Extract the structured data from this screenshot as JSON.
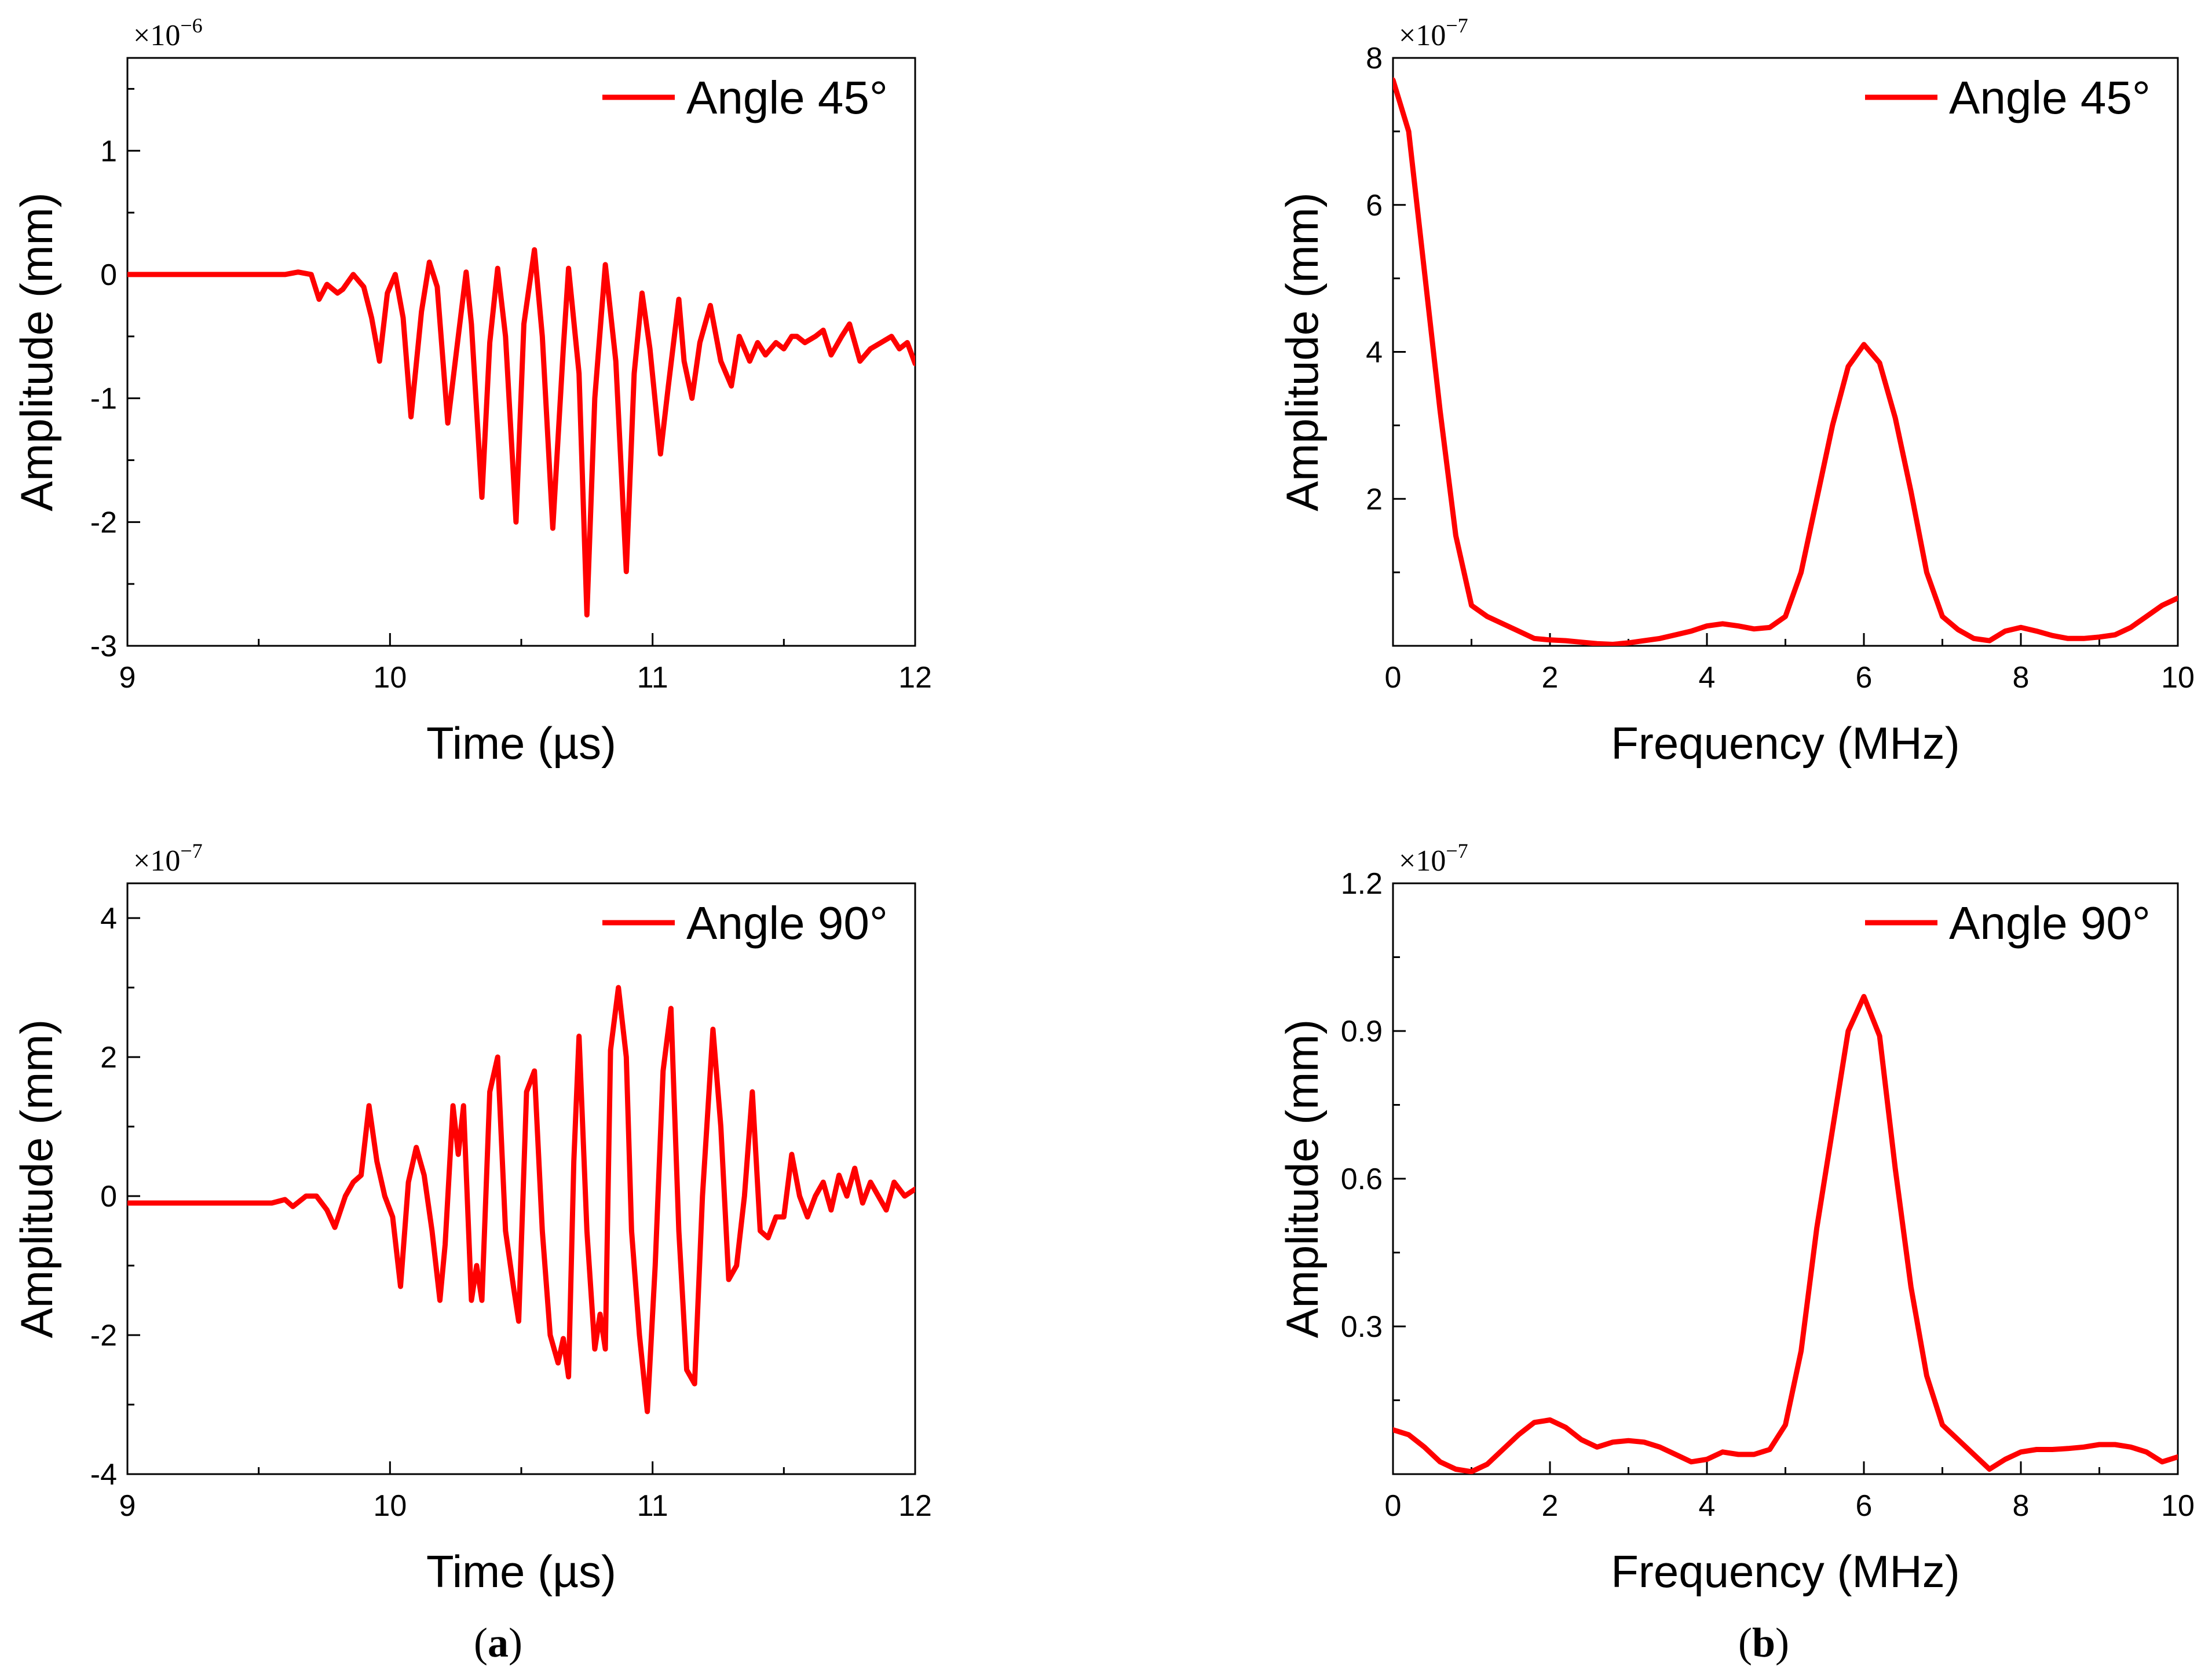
{
  "panel_labels": [
    {
      "open": "(",
      "letter": "a",
      "close": ")"
    },
    {
      "open": "(",
      "letter": "b",
      "close": ")"
    }
  ],
  "colors": {
    "series": "#ff0000",
    "axis": "#000000"
  },
  "chart_data": [
    {
      "type": "line",
      "title": "",
      "xlabel": "Time (µs)",
      "ylabel": "Amplitude (mm)",
      "multiplier": {
        "base": "×10",
        "exp": "−6"
      },
      "xlim": [
        9,
        12
      ],
      "ylim": [
        -3,
        1.75
      ],
      "xticks": [
        9,
        10,
        11,
        12
      ],
      "yticks": [
        -3,
        -2,
        -1,
        0,
        1
      ],
      "ytick_labels": [
        "-3",
        "-2",
        "-1",
        "0",
        "1"
      ],
      "legend": "Angle 45°",
      "legend_loc": "top-right",
      "series": [
        {
          "name": "Angle 45°",
          "color": "#ff0000",
          "x": [
            9.0,
            9.6,
            9.65,
            9.7,
            9.73,
            9.76,
            9.8,
            9.82,
            9.86,
            9.9,
            9.93,
            9.96,
            9.99,
            10.02,
            10.05,
            10.08,
            10.12,
            10.15,
            10.18,
            10.22,
            10.26,
            10.29,
            10.31,
            10.35,
            10.38,
            10.41,
            10.44,
            10.48,
            10.51,
            10.55,
            10.58,
            10.62,
            10.66,
            10.68,
            10.72,
            10.75,
            10.78,
            10.82,
            10.86,
            10.9,
            10.93,
            10.96,
            10.99,
            11.03,
            11.06,
            11.1,
            11.12,
            11.15,
            11.18,
            11.22,
            11.26,
            11.3,
            11.33,
            11.37,
            11.4,
            11.43,
            11.47,
            11.5,
            11.53,
            11.55,
            11.58,
            11.62,
            11.65,
            11.68,
            11.72,
            11.75,
            11.79,
            11.83,
            11.87,
            11.91,
            11.94,
            11.97,
            12.0
          ],
          "y": [
            0.0,
            0.0,
            0.02,
            0.0,
            -0.2,
            -0.08,
            -0.15,
            -0.12,
            0.0,
            -0.1,
            -0.35,
            -0.7,
            -0.15,
            0.0,
            -0.35,
            -1.15,
            -0.3,
            0.1,
            -0.1,
            -1.2,
            -0.5,
            0.02,
            -0.4,
            -1.8,
            -0.55,
            0.05,
            -0.5,
            -2.0,
            -0.4,
            0.2,
            -0.5,
            -2.05,
            -0.6,
            0.05,
            -0.8,
            -2.75,
            -1.0,
            0.08,
            -0.7,
            -2.4,
            -0.8,
            -0.15,
            -0.6,
            -1.45,
            -0.9,
            -0.2,
            -0.7,
            -1.0,
            -0.55,
            -0.25,
            -0.7,
            -0.9,
            -0.5,
            -0.7,
            -0.55,
            -0.65,
            -0.55,
            -0.6,
            -0.5,
            -0.5,
            -0.55,
            -0.5,
            -0.45,
            -0.65,
            -0.5,
            -0.4,
            -0.7,
            -0.6,
            -0.55,
            -0.5,
            -0.6,
            -0.55,
            -0.72
          ]
        }
      ]
    },
    {
      "type": "line",
      "title": "",
      "xlabel": "Frequency (MHz)",
      "ylabel": "Amplitude (mm)",
      "multiplier": {
        "base": "×10",
        "exp": "−7"
      },
      "xlim": [
        0,
        10
      ],
      "ylim": [
        0,
        8
      ],
      "xticks": [
        0,
        2,
        4,
        6,
        8,
        10
      ],
      "yticks": [
        2,
        4,
        6,
        8
      ],
      "ytick_labels": [
        "2",
        "4",
        "6",
        "8"
      ],
      "legend": "Angle 45°",
      "legend_loc": "top-right",
      "series": [
        {
          "name": "Angle 45°",
          "color": "#ff0000",
          "x": [
            0,
            0.2,
            0.4,
            0.6,
            0.8,
            1.0,
            1.2,
            1.4,
            1.6,
            1.8,
            2.0,
            2.2,
            2.4,
            2.6,
            2.8,
            3.0,
            3.2,
            3.4,
            3.6,
            3.8,
            4.0,
            4.2,
            4.4,
            4.6,
            4.8,
            5.0,
            5.2,
            5.4,
            5.6,
            5.8,
            6.0,
            6.2,
            6.4,
            6.6,
            6.8,
            7.0,
            7.2,
            7.4,
            7.6,
            7.8,
            8.0,
            8.2,
            8.4,
            8.6,
            8.8,
            9.0,
            9.2,
            9.4,
            9.6,
            9.8,
            10.0
          ],
          "y": [
            7.7,
            7.0,
            5.1,
            3.2,
            1.5,
            0.55,
            0.4,
            0.3,
            0.2,
            0.1,
            0.08,
            0.07,
            0.05,
            0.03,
            0.02,
            0.04,
            0.07,
            0.1,
            0.15,
            0.2,
            0.27,
            0.3,
            0.27,
            0.23,
            0.25,
            0.4,
            1.0,
            2.0,
            3.0,
            3.8,
            4.1,
            3.85,
            3.1,
            2.1,
            1.0,
            0.4,
            0.22,
            0.1,
            0.07,
            0.2,
            0.25,
            0.2,
            0.14,
            0.1,
            0.1,
            0.12,
            0.15,
            0.25,
            0.4,
            0.55,
            0.65
          ]
        }
      ]
    },
    {
      "type": "line",
      "title": "",
      "xlabel": "Time (µs)",
      "ylabel": "Amplitude (mm)",
      "multiplier": {
        "base": "×10",
        "exp": "−7"
      },
      "xlim": [
        9,
        12
      ],
      "ylim": [
        -4,
        4.5
      ],
      "xticks": [
        9,
        10,
        11,
        12
      ],
      "yticks": [
        -4,
        -2,
        0,
        2,
        4
      ],
      "ytick_labels": [
        "-4",
        "-2",
        "0",
        "2",
        "4"
      ],
      "legend": "Angle 90°",
      "legend_loc": "top-right",
      "series": [
        {
          "name": "Angle 90°",
          "color": "#ff0000",
          "x": [
            9.0,
            9.55,
            9.6,
            9.63,
            9.68,
            9.72,
            9.76,
            9.79,
            9.83,
            9.86,
            9.89,
            9.92,
            9.95,
            9.98,
            10.01,
            10.04,
            10.07,
            10.1,
            10.13,
            10.16,
            10.19,
            10.21,
            10.24,
            10.26,
            10.28,
            10.31,
            10.33,
            10.35,
            10.38,
            10.41,
            10.44,
            10.47,
            10.49,
            10.52,
            10.55,
            10.58,
            10.61,
            10.64,
            10.66,
            10.68,
            10.7,
            10.72,
            10.75,
            10.78,
            10.8,
            10.82,
            10.84,
            10.87,
            10.9,
            10.92,
            10.95,
            10.98,
            11.01,
            11.04,
            11.07,
            11.1,
            11.13,
            11.16,
            11.19,
            11.23,
            11.26,
            11.29,
            11.32,
            11.35,
            11.38,
            11.41,
            11.44,
            11.47,
            11.5,
            11.53,
            11.56,
            11.59,
            11.62,
            11.65,
            11.68,
            11.71,
            11.74,
            11.77,
            11.8,
            11.83,
            11.86,
            11.89,
            11.92,
            11.96,
            12.0
          ],
          "y": [
            -0.1,
            -0.1,
            -0.05,
            -0.15,
            0.0,
            0.0,
            -0.2,
            -0.45,
            0.0,
            0.2,
            0.3,
            1.3,
            0.5,
            0.0,
            -0.3,
            -1.3,
            0.2,
            0.7,
            0.3,
            -0.5,
            -1.5,
            -0.7,
            1.3,
            0.6,
            1.3,
            -1.5,
            -1.0,
            -1.5,
            1.5,
            2.0,
            -0.5,
            -1.3,
            -1.8,
            1.5,
            1.8,
            -0.5,
            -2.0,
            -2.4,
            -2.05,
            -2.6,
            0.5,
            2.3,
            -0.5,
            -2.2,
            -1.7,
            -2.2,
            2.1,
            3.0,
            2.0,
            -0.5,
            -2.0,
            -3.1,
            -1.0,
            1.8,
            2.7,
            -0.5,
            -2.5,
            -2.7,
            0.0,
            2.4,
            1.0,
            -1.2,
            -1.0,
            0.0,
            1.5,
            -0.5,
            -0.6,
            -0.3,
            -0.3,
            0.6,
            0.0,
            -0.3,
            0.0,
            0.2,
            -0.2,
            0.3,
            0.0,
            0.4,
            -0.1,
            0.2,
            0.0,
            -0.2,
            0.2,
            0.0,
            0.1
          ]
        }
      ]
    },
    {
      "type": "line",
      "title": "",
      "xlabel": "Frequency (MHz)",
      "ylabel": "Amplitude (mm)",
      "multiplier": {
        "base": "×10",
        "exp": "−7"
      },
      "xlim": [
        0,
        10
      ],
      "ylim": [
        0,
        1.2
      ],
      "xticks": [
        0,
        2,
        4,
        6,
        8,
        10
      ],
      "yticks": [
        0.3,
        0.6,
        0.9,
        1.2
      ],
      "ytick_labels": [
        "0.3",
        "0.6",
        "0.9",
        "1.2"
      ],
      "legend": "Angle 90°",
      "legend_loc": "top-right",
      "series": [
        {
          "name": "Angle 90°",
          "color": "#ff0000",
          "x": [
            0,
            0.2,
            0.4,
            0.6,
            0.8,
            1.0,
            1.2,
            1.4,
            1.6,
            1.8,
            2.0,
            2.2,
            2.4,
            2.6,
            2.8,
            3.0,
            3.2,
            3.4,
            3.6,
            3.8,
            4.0,
            4.2,
            4.4,
            4.6,
            4.8,
            5.0,
            5.2,
            5.4,
            5.6,
            5.8,
            6.0,
            6.2,
            6.4,
            6.6,
            6.8,
            7.0,
            7.2,
            7.4,
            7.6,
            7.8,
            8.0,
            8.2,
            8.4,
            8.6,
            8.8,
            9.0,
            9.2,
            9.4,
            9.6,
            9.8,
            10.0
          ],
          "y": [
            0.09,
            0.08,
            0.055,
            0.025,
            0.01,
            0.005,
            0.02,
            0.05,
            0.08,
            0.105,
            0.11,
            0.095,
            0.07,
            0.055,
            0.065,
            0.068,
            0.065,
            0.055,
            0.04,
            0.025,
            0.03,
            0.045,
            0.04,
            0.04,
            0.05,
            0.1,
            0.25,
            0.5,
            0.7,
            0.9,
            0.97,
            0.89,
            0.62,
            0.38,
            0.2,
            0.1,
            0.07,
            0.04,
            0.01,
            0.03,
            0.045,
            0.05,
            0.05,
            0.052,
            0.055,
            0.06,
            0.06,
            0.055,
            0.045,
            0.025,
            0.035
          ]
        }
      ]
    }
  ]
}
